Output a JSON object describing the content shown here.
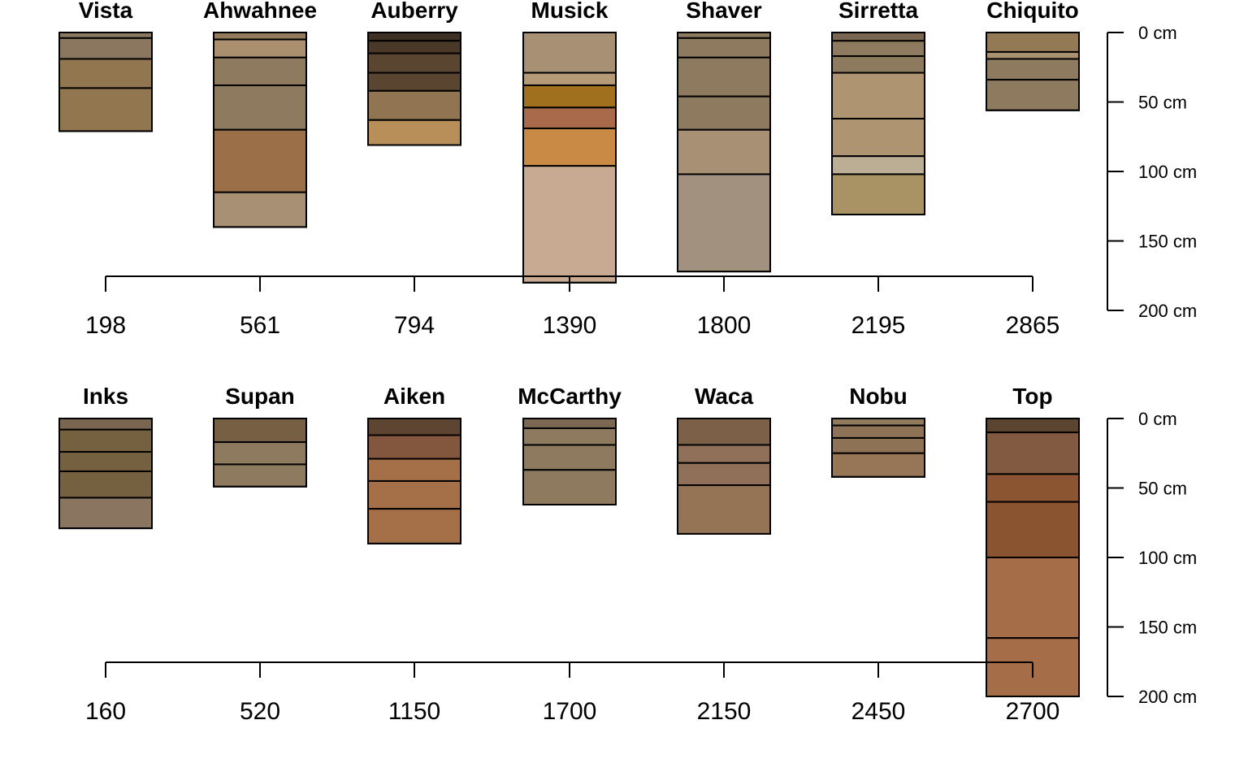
{
  "chart_data": [
    {
      "type": "soil-profile",
      "title": "",
      "depth_axis": {
        "ticks": [
          0,
          50,
          100,
          150,
          200
        ],
        "tick_labels": [
          "0 cm",
          "50 cm",
          "100 cm",
          "150 cm",
          "200 cm"
        ],
        "ylim": [
          0,
          200
        ]
      },
      "x_axis": {
        "tick_labels": [
          "198",
          "561",
          "794",
          "1390",
          "1800",
          "2195",
          "2865"
        ]
      },
      "profiles": [
        {
          "name": "Vista",
          "x": 198,
          "horizons": [
            {
              "top": 0,
              "bottom": 4,
              "color": "#8b7860"
            },
            {
              "top": 4,
              "bottom": 19,
              "color": "#8b7660"
            },
            {
              "top": 19,
              "bottom": 40,
              "color": "#917650"
            },
            {
              "top": 40,
              "bottom": 71,
              "color": "#917650"
            }
          ]
        },
        {
          "name": "Ahwahnee",
          "x": 561,
          "horizons": [
            {
              "top": 0,
              "bottom": 5,
              "color": "#937a5c"
            },
            {
              "top": 5,
              "bottom": 18,
              "color": "#ab9070"
            },
            {
              "top": 18,
              "bottom": 38,
              "color": "#8e7a5e"
            },
            {
              "top": 38,
              "bottom": 70,
              "color": "#8e7a5e"
            },
            {
              "top": 70,
              "bottom": 115,
              "color": "#9b6f48"
            },
            {
              "top": 115,
              "bottom": 140,
              "color": "#a89074"
            }
          ]
        },
        {
          "name": "Auberry",
          "x": 794,
          "horizons": [
            {
              "top": 0,
              "bottom": 6,
              "color": "#3f3024"
            },
            {
              "top": 6,
              "bottom": 15,
              "color": "#4a3828"
            },
            {
              "top": 15,
              "bottom": 29,
              "color": "#5a4530"
            },
            {
              "top": 29,
              "bottom": 42,
              "color": "#5a4530"
            },
            {
              "top": 42,
              "bottom": 63,
              "color": "#917552"
            },
            {
              "top": 63,
              "bottom": 81,
              "color": "#b88f58"
            }
          ]
        },
        {
          "name": "Musick",
          "x": 1390,
          "horizons": [
            {
              "top": 0,
              "bottom": 29,
              "color": "#a89074"
            },
            {
              "top": 29,
              "bottom": 38,
              "color": "#b59a78"
            },
            {
              "top": 38,
              "bottom": 54,
              "color": "#a0701e"
            },
            {
              "top": 54,
              "bottom": 69,
              "color": "#a96a4c"
            },
            {
              "top": 69,
              "bottom": 96,
              "color": "#c88a44"
            },
            {
              "top": 96,
              "bottom": 180,
              "color": "#c8aa92"
            }
          ]
        },
        {
          "name": "Shaver",
          "x": 1800,
          "horizons": [
            {
              "top": 0,
              "bottom": 4,
              "color": "#8e7a5e"
            },
            {
              "top": 4,
              "bottom": 18,
              "color": "#8e7a5e"
            },
            {
              "top": 18,
              "bottom": 46,
              "color": "#8e7a5e"
            },
            {
              "top": 46,
              "bottom": 70,
              "color": "#8e7a5e"
            },
            {
              "top": 70,
              "bottom": 102,
              "color": "#a89074"
            },
            {
              "top": 102,
              "bottom": 172,
              "color": "#a1917e"
            }
          ]
        },
        {
          "name": "Sirretta",
          "x": 2195,
          "horizons": [
            {
              "top": 0,
              "bottom": 6,
              "color": "#7a6650"
            },
            {
              "top": 6,
              "bottom": 17,
              "color": "#8e7a5e"
            },
            {
              "top": 17,
              "bottom": 29,
              "color": "#8e7a5e"
            },
            {
              "top": 29,
              "bottom": 62,
              "color": "#ae9470"
            },
            {
              "top": 62,
              "bottom": 89,
              "color": "#ae9470"
            },
            {
              "top": 89,
              "bottom": 102,
              "color": "#bcae94"
            },
            {
              "top": 102,
              "bottom": 131,
              "color": "#a99264"
            }
          ]
        },
        {
          "name": "Chiquito",
          "x": 2865,
          "horizons": [
            {
              "top": 0,
              "bottom": 14,
              "color": "#937a54"
            },
            {
              "top": 14,
              "bottom": 19,
              "color": "#a89070"
            },
            {
              "top": 19,
              "bottom": 34,
              "color": "#8e7a5e"
            },
            {
              "top": 34,
              "bottom": 56,
              "color": "#8e7a5e"
            }
          ]
        }
      ]
    },
    {
      "type": "soil-profile",
      "title": "",
      "depth_axis": {
        "ticks": [
          0,
          50,
          100,
          150,
          200
        ],
        "tick_labels": [
          "0 cm",
          "50 cm",
          "100 cm",
          "150 cm",
          "200 cm"
        ],
        "ylim": [
          0,
          200
        ]
      },
      "x_axis": {
        "tick_labels": [
          "160",
          "520",
          "1150",
          "1700",
          "2150",
          "2450",
          "2700"
        ]
      },
      "profiles": [
        {
          "name": "Inks",
          "x": 160,
          "horizons": [
            {
              "top": 0,
              "bottom": 8,
              "color": "#7a6650"
            },
            {
              "top": 8,
              "bottom": 24,
              "color": "#75603f"
            },
            {
              "top": 24,
              "bottom": 38,
              "color": "#75603f"
            },
            {
              "top": 38,
              "bottom": 57,
              "color": "#75603f"
            },
            {
              "top": 57,
              "bottom": 79,
              "color": "#8a7660"
            }
          ]
        },
        {
          "name": "Supan",
          "x": 520,
          "horizons": [
            {
              "top": 0,
              "bottom": 17,
              "color": "#765f42"
            },
            {
              "top": 17,
              "bottom": 33,
              "color": "#8e7a5e"
            },
            {
              "top": 33,
              "bottom": 49,
              "color": "#8e7a5e"
            }
          ]
        },
        {
          "name": "Aiken",
          "x": 1150,
          "horizons": [
            {
              "top": 0,
              "bottom": 12,
              "color": "#5e4532"
            },
            {
              "top": 12,
              "bottom": 29,
              "color": "#82573e"
            },
            {
              "top": 29,
              "bottom": 45,
              "color": "#a56f48"
            },
            {
              "top": 45,
              "bottom": 65,
              "color": "#a56f48"
            },
            {
              "top": 65,
              "bottom": 90,
              "color": "#a56f48"
            }
          ]
        },
        {
          "name": "McCarthy",
          "x": 1700,
          "horizons": [
            {
              "top": 0,
              "bottom": 7,
              "color": "#7c6852"
            },
            {
              "top": 7,
              "bottom": 19,
              "color": "#8e7a5e"
            },
            {
              "top": 19,
              "bottom": 37,
              "color": "#8e7a5e"
            },
            {
              "top": 37,
              "bottom": 62,
              "color": "#8e7a5e"
            }
          ]
        },
        {
          "name": "Waca",
          "x": 2150,
          "horizons": [
            {
              "top": 0,
              "bottom": 19,
              "color": "#7c6048"
            },
            {
              "top": 19,
              "bottom": 32,
              "color": "#907058"
            },
            {
              "top": 32,
              "bottom": 48,
              "color": "#907058"
            },
            {
              "top": 48,
              "bottom": 83,
              "color": "#957456"
            }
          ]
        },
        {
          "name": "Nobu",
          "x": 2450,
          "horizons": [
            {
              "top": 0,
              "bottom": 5,
              "color": "#8f7a5c"
            },
            {
              "top": 5,
              "bottom": 14,
              "color": "#8e7256"
            },
            {
              "top": 14,
              "bottom": 25,
              "color": "#8e7256"
            },
            {
              "top": 25,
              "bottom": 42,
              "color": "#977658"
            }
          ]
        },
        {
          "name": "Top",
          "x": 2700,
          "horizons": [
            {
              "top": 0,
              "bottom": 10,
              "color": "#5c4530"
            },
            {
              "top": 10,
              "bottom": 40,
              "color": "#825a42"
            },
            {
              "top": 40,
              "bottom": 60,
              "color": "#8c5532"
            },
            {
              "top": 60,
              "bottom": 100,
              "color": "#8a5430"
            },
            {
              "top": 100,
              "bottom": 158,
              "color": "#a66e48"
            },
            {
              "top": 158,
              "bottom": 200,
              "color": "#a66e48"
            }
          ]
        }
      ]
    }
  ]
}
